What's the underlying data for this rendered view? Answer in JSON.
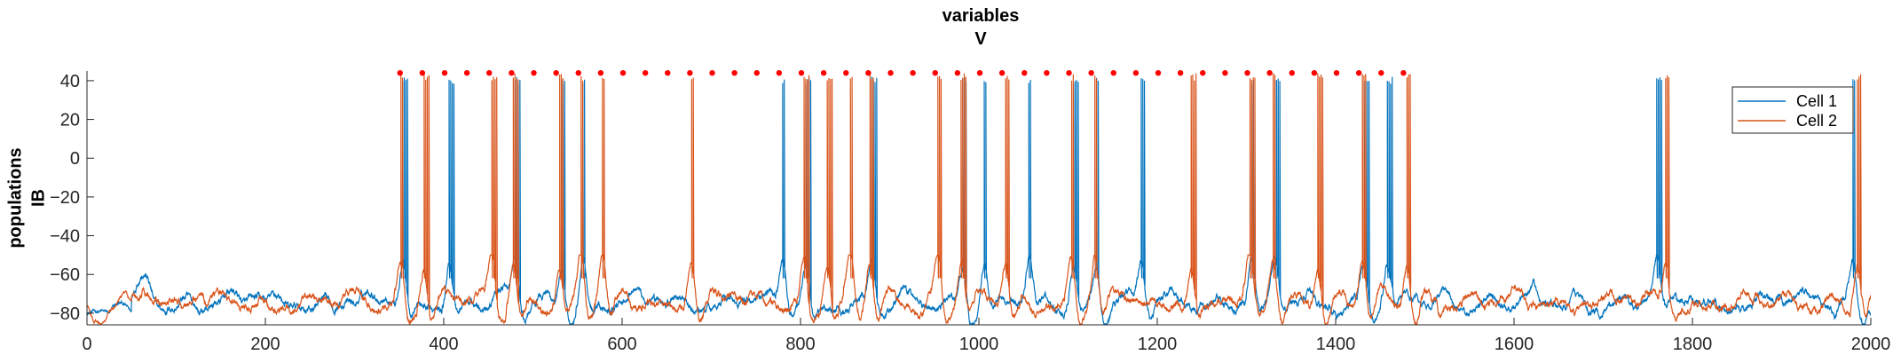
{
  "chart_data": {
    "type": "line",
    "title_lines": [
      "variables",
      "V"
    ],
    "ylabel_lines": [
      "populations",
      "IB"
    ],
    "xlabel": "",
    "xlim": [
      0,
      2000
    ],
    "ylim": [
      -86,
      45
    ],
    "xticks": [
      0,
      200,
      400,
      600,
      800,
      1000,
      1200,
      1400,
      1600,
      1800,
      2000
    ],
    "yticks": [
      -80,
      -60,
      -40,
      -20,
      0,
      20,
      40
    ],
    "grid": false,
    "legend_position": "top-right",
    "baseline_mV": -76,
    "series": [
      {
        "name": "Cell 1",
        "color": "#0072BD",
        "burst_times": [
          354,
          406,
          480,
          532,
          556,
          780,
          806,
          880,
          982,
          1006,
          1056,
          1106,
          1132,
          1182,
          1306,
          1332,
          1432,
          1458,
          1760,
          1980
        ],
        "spike_peak": 42
      },
      {
        "name": "Cell 2",
        "color": "#D95319",
        "burst_times": [
          352,
          378,
          454,
          478,
          530,
          554,
          578,
          678,
          804,
          830,
          856,
          878,
          954,
          980,
          1030,
          1104,
          1130,
          1238,
          1304,
          1330,
          1380,
          1430,
          1480,
          1770,
          1985
        ],
        "spike_peak": 44
      }
    ],
    "markers": {
      "color": "#FF0000",
      "y": 44,
      "x": [
        351,
        376,
        401,
        426,
        451,
        476,
        501,
        526,
        551,
        576,
        601,
        626,
        651,
        676,
        701,
        726,
        751,
        776,
        801,
        826,
        851,
        876,
        901,
        926,
        951,
        976,
        1001,
        1026,
        1051,
        1076,
        1101,
        1126,
        1151,
        1176,
        1201,
        1226,
        1251,
        1276,
        1301,
        1326,
        1351,
        1376,
        1401,
        1426,
        1451,
        1476
      ]
    }
  }
}
